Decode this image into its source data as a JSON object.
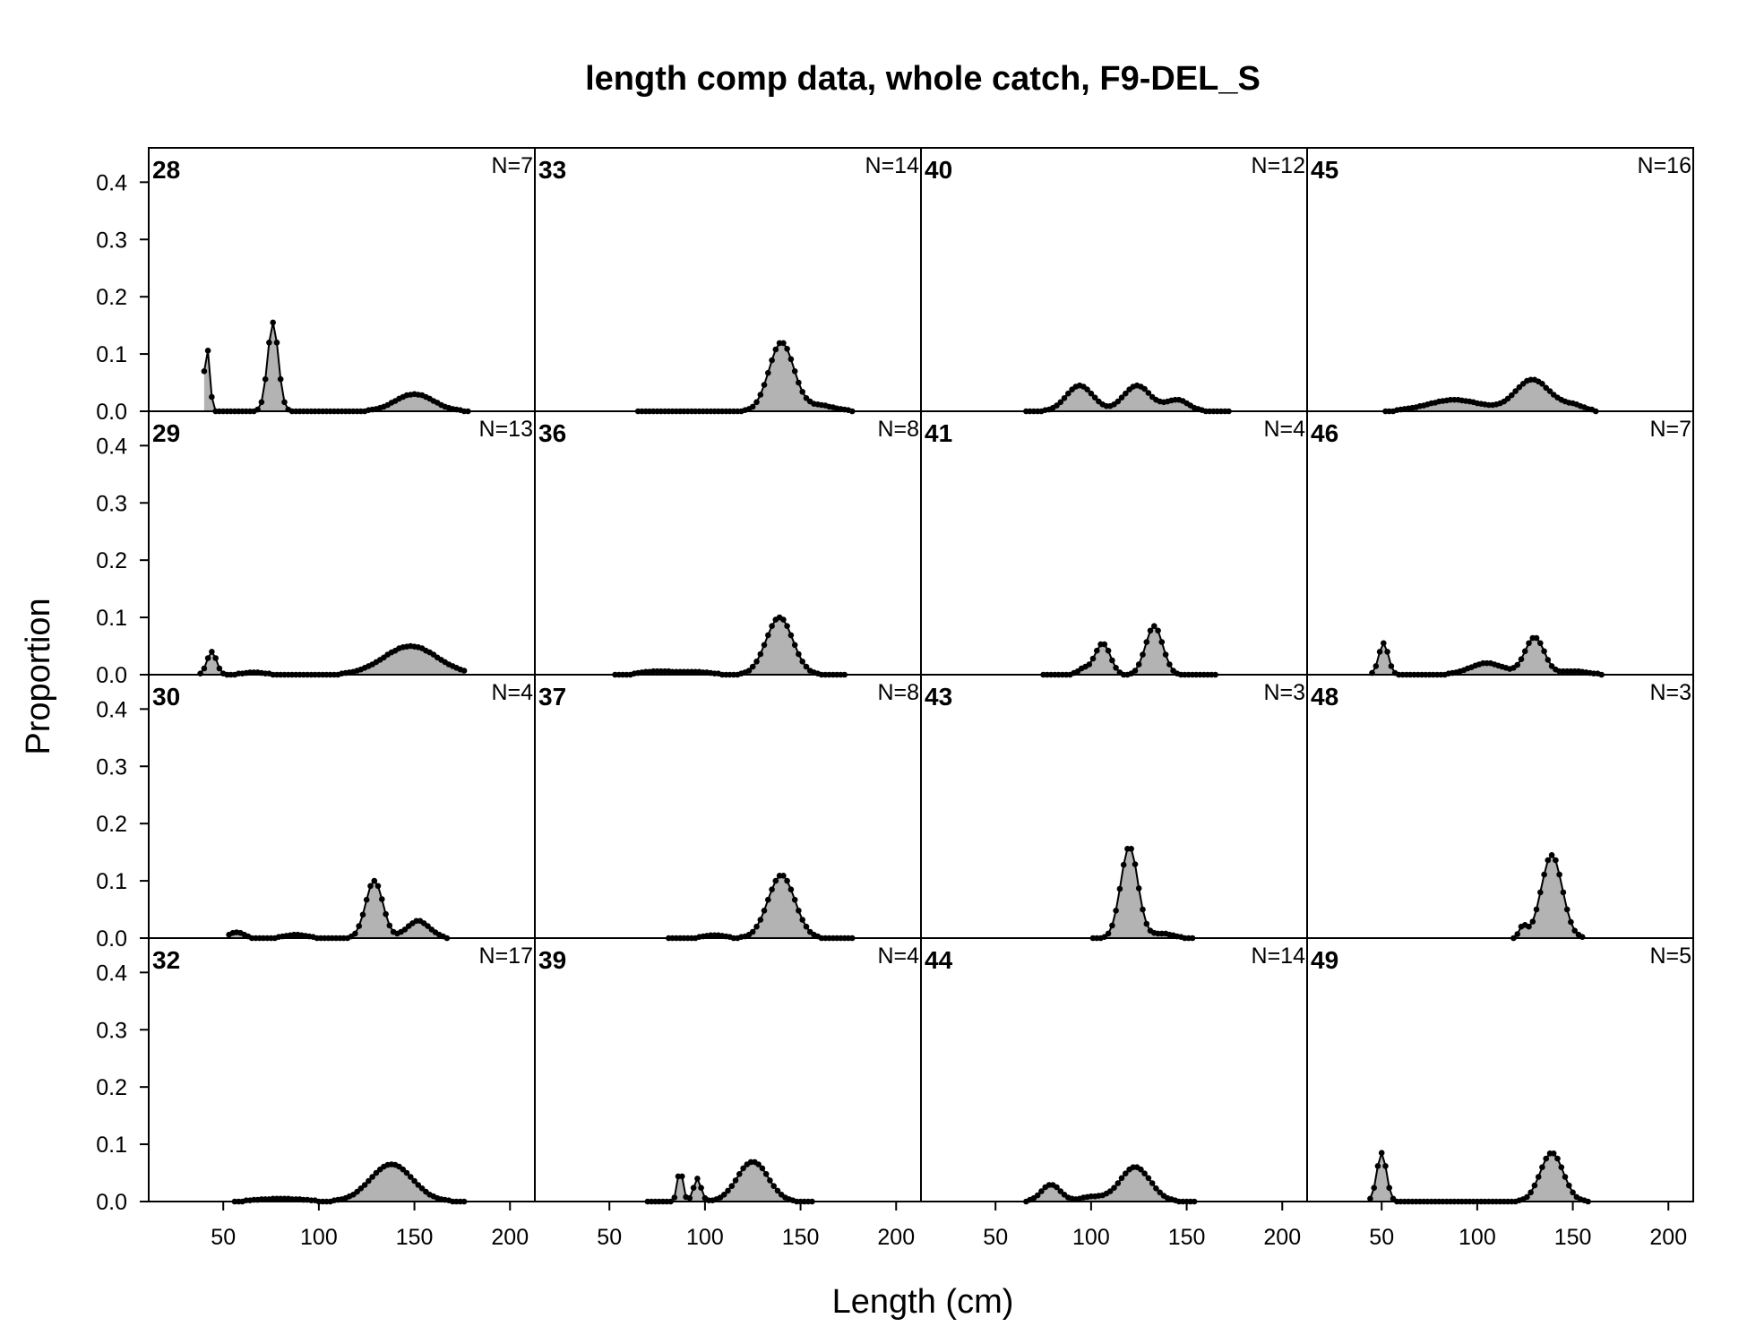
{
  "chart_data": {
    "type": "area",
    "title": "length comp data, whole catch, F9-DEL_S",
    "xlabel": "Length (cm)",
    "ylabel": "Proportion",
    "xlim": [
      11,
      213
    ],
    "ylim": [
      0,
      0.46
    ],
    "xticks": [
      "50",
      "100",
      "150",
      "200"
    ],
    "yticks": [
      "0.0",
      "0.1",
      "0.2",
      "0.3",
      "0.4"
    ],
    "layout": "4 rows x 4 columns, shared axes",
    "fill_color": "#b3b3b3",
    "line_color": "#000000",
    "panels": [
      {
        "label": "28",
        "n": "N=7",
        "peaks": [
          [
            40,
            0.045,
            1
          ],
          [
            42,
            0.1,
            1.2
          ],
          [
            76,
            0.155,
            2.8
          ],
          [
            150,
            0.03,
            10
          ]
        ],
        "range": [
          40,
          178
        ]
      },
      {
        "label": "33",
        "n": "N=14",
        "peaks": [
          [
            140,
            0.12,
            6.5
          ],
          [
            160,
            0.01,
            8
          ]
        ],
        "range": [
          65,
          177
        ]
      },
      {
        "label": "40",
        "n": "N=12",
        "peaks": [
          [
            94,
            0.045,
            7
          ],
          [
            124,
            0.045,
            7
          ],
          [
            145,
            0.02,
            6
          ]
        ],
        "range": [
          66,
          173
        ]
      },
      {
        "label": "45",
        "n": "N=16",
        "peaks": [
          [
            88,
            0.02,
            14
          ],
          [
            129,
            0.055,
            9
          ],
          [
            150,
            0.01,
            6
          ]
        ],
        "range": [
          52,
          162
        ]
      },
      {
        "label": "29",
        "n": "N=13",
        "peaks": [
          [
            44,
            0.04,
            2.5
          ],
          [
            66,
            0.004,
            6
          ],
          [
            148,
            0.05,
            14
          ]
        ],
        "range": [
          38,
          177
        ]
      },
      {
        "label": "36",
        "n": "N=8",
        "peaks": [
          [
            139,
            0.1,
            7
          ],
          [
            75,
            0.006,
            8
          ],
          [
            95,
            0.005,
            8
          ]
        ],
        "range": [
          53,
          173
        ]
      },
      {
        "label": "41",
        "n": "N=4",
        "peaks": [
          [
            106,
            0.055,
            4
          ],
          [
            133,
            0.085,
            4.5
          ],
          [
            96,
            0.01,
            3
          ]
        ],
        "range": [
          75,
          165
        ]
      },
      {
        "label": "46",
        "n": "N=7",
        "peaks": [
          [
            51,
            0.055,
            2.5
          ],
          [
            105,
            0.02,
            9
          ],
          [
            130,
            0.065,
            5
          ],
          [
            150,
            0.006,
            8
          ]
        ],
        "range": [
          45,
          165
        ]
      },
      {
        "label": "30",
        "n": "N=4",
        "peaks": [
          [
            57,
            0.01,
            4
          ],
          [
            88,
            0.006,
            6
          ],
          [
            129,
            0.1,
            4.5
          ],
          [
            152,
            0.03,
            6
          ]
        ],
        "range": [
          53,
          167
        ]
      },
      {
        "label": "37",
        "n": "N=8",
        "peaks": [
          [
            140,
            0.11,
            7
          ],
          [
            105,
            0.005,
            6
          ]
        ],
        "range": [
          81,
          178
        ]
      },
      {
        "label": "43",
        "n": "N=3",
        "peaks": [
          [
            120,
            0.16,
            4.5
          ],
          [
            137,
            0.008,
            6
          ]
        ],
        "range": [
          101,
          154
        ]
      },
      {
        "label": "48",
        "n": "N=3",
        "peaks": [
          [
            139,
            0.145,
            5.5
          ],
          [
            124,
            0.02,
            2
          ]
        ],
        "range": [
          119,
          155
        ]
      },
      {
        "label": "32",
        "n": "N=17",
        "peaks": [
          [
            138,
            0.065,
            11
          ],
          [
            80,
            0.005,
            12
          ]
        ],
        "range": [
          56,
          176
        ]
      },
      {
        "label": "39",
        "n": "N=4",
        "peaks": [
          [
            87,
            0.055,
            1.5
          ],
          [
            96,
            0.04,
            2
          ],
          [
            125,
            0.07,
            8
          ]
        ],
        "range": [
          70,
          157
        ]
      },
      {
        "label": "44",
        "n": "N=14",
        "peaks": [
          [
            79,
            0.03,
            5
          ],
          [
            123,
            0.06,
            8
          ],
          [
            100,
            0.008,
            6
          ]
        ],
        "range": [
          66,
          155
        ]
      },
      {
        "label": "49",
        "n": "N=5",
        "peaks": [
          [
            50,
            0.085,
            2.5
          ],
          [
            139,
            0.085,
            6
          ]
        ],
        "range": [
          44,
          158
        ]
      }
    ]
  }
}
